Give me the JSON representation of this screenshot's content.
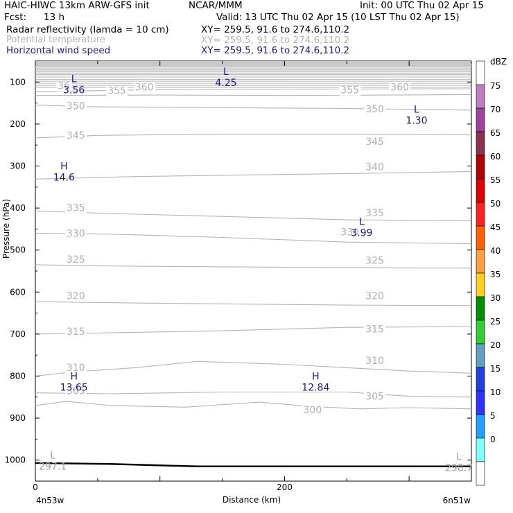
{
  "header": {
    "model": "HAIC-HIWC 13km ARW-GFS init",
    "org": "NCAR/MMM",
    "init": "Init: 00 UTC Thu 02 Apr 15",
    "fcst_label": "Fcst:",
    "fcst_value": "13 h",
    "valid": "Valid: 13 UTC Thu 02 Apr 15 (10 LST Thu 02 Apr 15)"
  },
  "fields": [
    {
      "name": "Radar reflectivity (lamda = 10 cm)",
      "xy": "XY= 259.5, 91.6 to 274.6,110.2",
      "color": "#000000"
    },
    {
      "name": "Potential temperature",
      "xy": "XY= 259.5, 91.6 to 274.6,110.2",
      "color": "#b4b4b4"
    },
    {
      "name": "Horizontal wind speed",
      "xy": "XY= 259.5, 91.6 to 274.6,110.2",
      "color": "#1a1a8c"
    }
  ],
  "chart_data": {
    "type": "cross-section",
    "ylabel": "Pressure (hPa)",
    "xlabel": "Distance (km)",
    "x_left_label": "4n53w",
    "x_right_label": "6n51w",
    "xlim": [
      0,
      350
    ],
    "x_ticks": [
      0,
      200
    ],
    "ylim": [
      50,
      1050
    ],
    "y_scale": "linear-inverted",
    "y_ticks": [
      100,
      200,
      300,
      400,
      500,
      600,
      700,
      800,
      900,
      1000
    ],
    "theta_contours": [
      {
        "theta": 350,
        "p": [
          [
            0,
            155
          ],
          [
            50,
            159
          ],
          [
            150,
            161
          ],
          [
            250,
            163
          ],
          [
            350,
            167
          ]
        ]
      },
      {
        "theta": 345,
        "p": [
          [
            0,
            233
          ],
          [
            50,
            227
          ],
          [
            150,
            224
          ],
          [
            250,
            224
          ],
          [
            350,
            225
          ]
        ]
      },
      {
        "theta": 340,
        "p": [
          [
            0,
            331
          ],
          [
            80,
            325
          ],
          [
            150,
            322
          ],
          [
            250,
            318
          ],
          [
            350,
            313
          ]
        ]
      },
      {
        "theta": 335,
        "p": [
          [
            0,
            407
          ],
          [
            60,
            413
          ],
          [
            150,
            420
          ],
          [
            250,
            428
          ],
          [
            350,
            430
          ]
        ]
      },
      {
        "theta": 330,
        "p": [
          [
            0,
            460
          ],
          [
            60,
            462
          ],
          [
            150,
            470
          ],
          [
            250,
            481
          ],
          [
            350,
            485
          ]
        ]
      },
      {
        "theta": 325,
        "p": [
          [
            0,
            535
          ],
          [
            60,
            538
          ],
          [
            150,
            540
          ],
          [
            250,
            542
          ],
          [
            350,
            543
          ]
        ]
      },
      {
        "theta": 320,
        "p": [
          [
            0,
            623
          ],
          [
            80,
            626
          ],
          [
            150,
            628
          ],
          [
            250,
            631
          ],
          [
            350,
            632
          ]
        ]
      },
      {
        "theta": 315,
        "p": [
          [
            0,
            700
          ],
          [
            60,
            697
          ],
          [
            150,
            692
          ],
          [
            250,
            684
          ],
          [
            350,
            682
          ]
        ]
      },
      {
        "theta": 310,
        "p": [
          [
            0,
            800
          ],
          [
            30,
            790
          ],
          [
            80,
            780
          ],
          [
            130,
            765
          ],
          [
            200,
            772
          ],
          [
            250,
            780
          ],
          [
            300,
            788
          ],
          [
            350,
            793
          ]
        ]
      },
      {
        "theta": 305,
        "p": [
          [
            0,
            840
          ],
          [
            60,
            842
          ],
          [
            150,
            838
          ],
          [
            250,
            838
          ],
          [
            300,
            848
          ],
          [
            350,
            850
          ]
        ]
      },
      {
        "theta": 300,
        "p": [
          [
            0,
            870
          ],
          [
            25,
            860
          ],
          [
            60,
            870
          ],
          [
            120,
            874
          ],
          [
            180,
            862
          ],
          [
            220,
            872
          ],
          [
            260,
            878
          ],
          [
            300,
            875
          ],
          [
            350,
            878
          ]
        ]
      },
      {
        "theta": 355,
        "p": [
          [
            0,
            132
          ],
          [
            100,
            131
          ],
          [
            200,
            132
          ],
          [
            350,
            130
          ]
        ]
      },
      {
        "theta": 360,
        "p": [
          [
            0,
            123
          ],
          [
            100,
            118
          ],
          [
            200,
            117
          ],
          [
            350,
            116
          ]
        ]
      }
    ],
    "contour_labels": [
      {
        "text": "350",
        "x": 25,
        "p": 165
      },
      {
        "text": "350",
        "x": 265,
        "p": 172
      },
      {
        "text": "345",
        "x": 25,
        "p": 235
      },
      {
        "text": "345",
        "x": 265,
        "p": 250
      },
      {
        "text": "340",
        "x": 265,
        "p": 310
      },
      {
        "text": "335",
        "x": 25,
        "p": 407
      },
      {
        "text": "335",
        "x": 265,
        "p": 420
      },
      {
        "text": "330",
        "x": 25,
        "p": 468
      },
      {
        "text": "330",
        "x": 245,
        "p": 465
      },
      {
        "text": "325",
        "x": 25,
        "p": 530
      },
      {
        "text": "325",
        "x": 265,
        "p": 533
      },
      {
        "text": "320",
        "x": 25,
        "p": 617
      },
      {
        "text": "320",
        "x": 265,
        "p": 617
      },
      {
        "text": "315",
        "x": 25,
        "p": 702
      },
      {
        "text": "315",
        "x": 265,
        "p": 696
      },
      {
        "text": "310",
        "x": 25,
        "p": 788
      },
      {
        "text": "310",
        "x": 265,
        "p": 771
      },
      {
        "text": "305",
        "x": 25,
        "p": 843
      },
      {
        "text": "305",
        "x": 265,
        "p": 856
      },
      {
        "text": "300",
        "x": 215,
        "p": 888
      },
      {
        "text": "355",
        "x": 58,
        "p": 128
      },
      {
        "text": "355",
        "x": 245,
        "p": 127
      },
      {
        "text": "360",
        "x": 80,
        "p": 120
      },
      {
        "text": "360",
        "x": 285,
        "p": 120
      },
      {
        "text": "36",
        "x": 18,
        "p": 117
      }
    ],
    "wind_extrema": [
      {
        "type": "L",
        "value": "3.56",
        "x": 31,
        "p": 100
      },
      {
        "type": "L",
        "value": "4.25",
        "x": 153,
        "p": 83
      },
      {
        "type": "L",
        "value": "1.30",
        "x": 306,
        "p": 173
      },
      {
        "type": "H",
        "value": "14.6",
        "x": 23,
        "p": 308
      },
      {
        "type": "L",
        "value": "3.99",
        "x": 262,
        "p": 440
      },
      {
        "type": "H",
        "value": "13.65",
        "x": 31,
        "p": 808
      },
      {
        "type": "H",
        "value": "12.84",
        "x": 225,
        "p": 808
      }
    ],
    "surface_extrema": [
      {
        "type": "L",
        "value": "297.1",
        "x": 14,
        "p": 1000
      },
      {
        "type": "L",
        "value": "298.7",
        "x": 340,
        "p": 1003
      }
    ],
    "terrain": {
      "p": [
        [
          0,
          1007
        ],
        [
          60,
          1009
        ],
        [
          130,
          1015
        ],
        [
          200,
          1015
        ],
        [
          260,
          1015
        ],
        [
          350,
          1015
        ]
      ],
      "color": "#000000"
    },
    "colorbar": {
      "unit": "dBZ",
      "labels": [
        75,
        70,
        65,
        60,
        55,
        50,
        45,
        40,
        35,
        30,
        25,
        20,
        15,
        10,
        5,
        0
      ],
      "colors": [
        "#ffffff",
        "#c080c0",
        "#a040a0",
        "#903050",
        "#b00000",
        "#e00000",
        "#ff2020",
        "#ff6000",
        "#ffa040",
        "#ffd020",
        "#009000",
        "#30d030",
        "#60a0c0",
        "#2040e0",
        "#3030ff",
        "#20a0ff",
        "#80ffff",
        "#ffffff"
      ]
    }
  }
}
